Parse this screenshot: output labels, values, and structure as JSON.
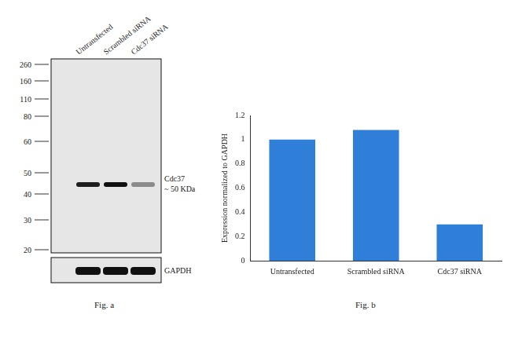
{
  "chart_data": {
    "type": "bar",
    "ylabel": "Expression normalized to GAPDH",
    "categories": [
      "Untransfected",
      "Scrambled siRNA",
      "Cdc37 siRNA"
    ],
    "values": [
      1.0,
      1.08,
      0.3
    ],
    "color": "#2f7ed8",
    "ylim": [
      0,
      1.2
    ],
    "yticks": [
      0,
      0.2,
      0.4,
      0.6,
      0.8,
      1,
      1.2
    ],
    "grid": false,
    "caption": "Fig. b"
  },
  "blot": {
    "lanes": [
      "Untransfected",
      "Scrambled siRNA",
      "Cdc37 siRNA"
    ],
    "markers": [
      260,
      160,
      110,
      80,
      60,
      50,
      40,
      30,
      20
    ],
    "target_label": [
      "Cdc37",
      "~ 50 KDa"
    ],
    "loading_label": "GAPDH",
    "caption": "Fig. a"
  }
}
